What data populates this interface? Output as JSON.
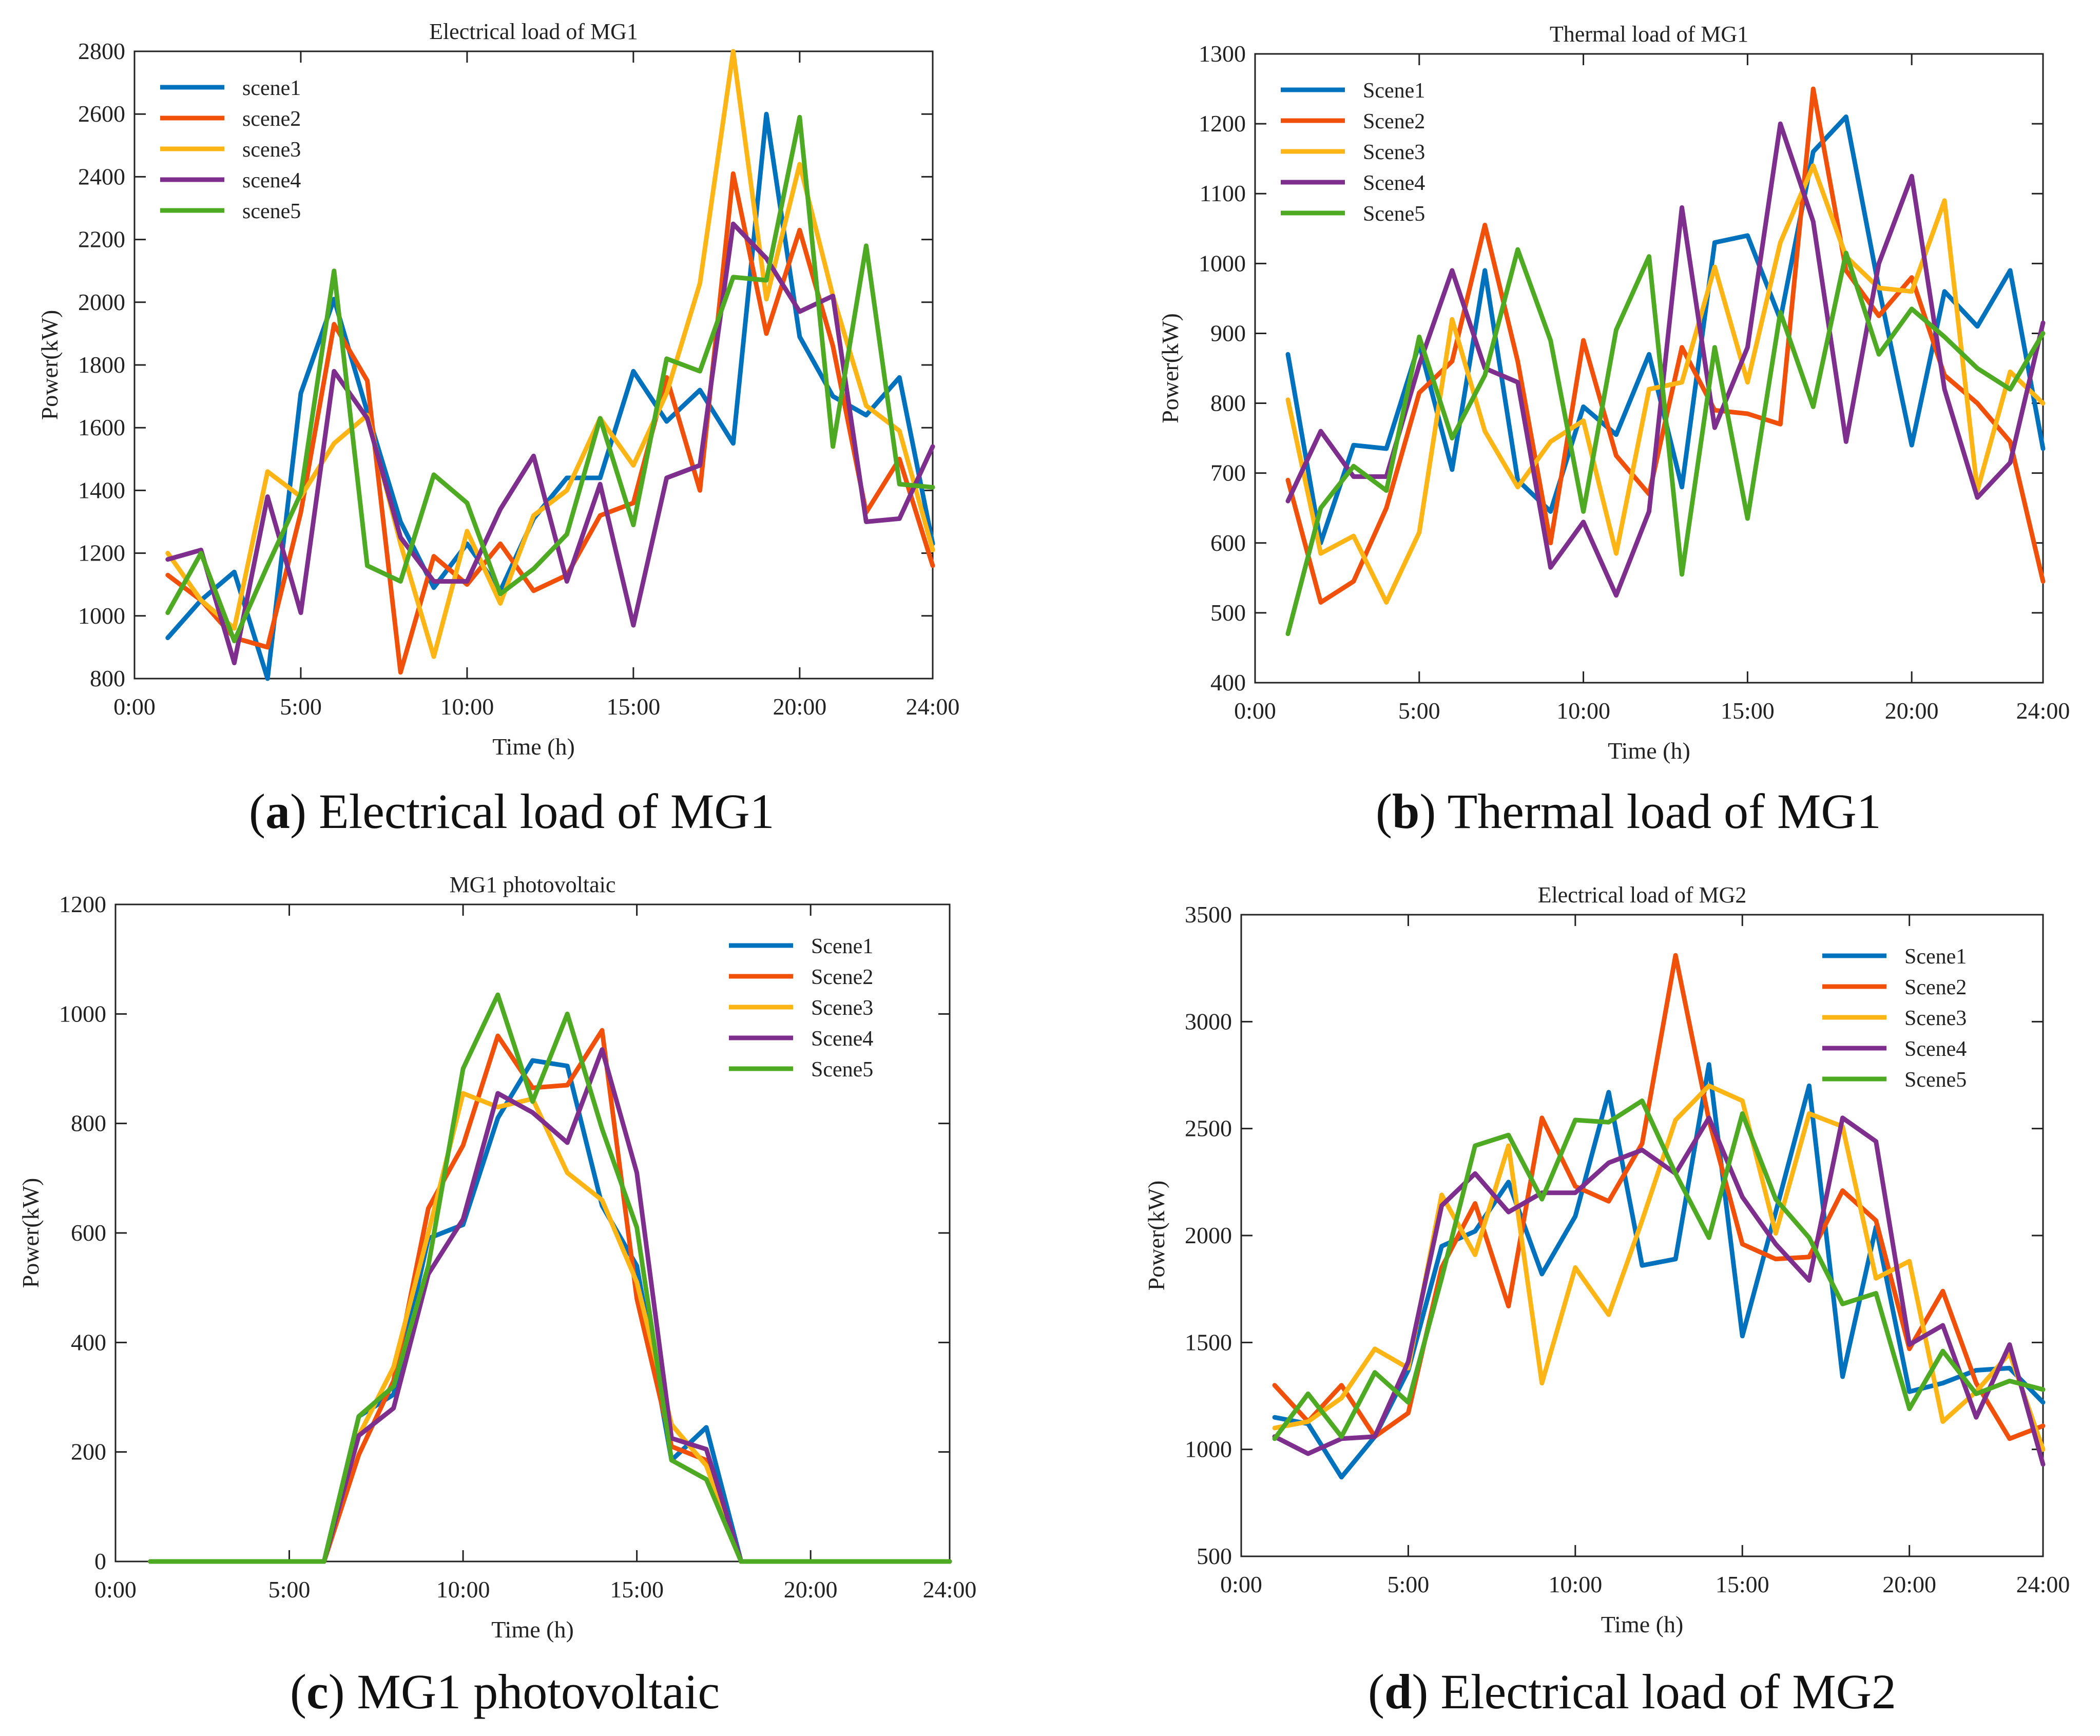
{
  "palette": [
    "#0072BD",
    "#F0500A",
    "#FDB515",
    "#7E2F8E",
    "#4DAA22"
  ],
  "captions": [
    {
      "letter": "a",
      "text": " Electrical load of MG1"
    },
    {
      "letter": "b",
      "text": " Thermal load of MG1"
    },
    {
      "letter": "c",
      "text": " MG1 photovoltaic"
    },
    {
      "letter": "d",
      "text": " Electrical load of MG2"
    }
  ],
  "chart_data": [
    {
      "type": "line",
      "title": "Electrical load of MG1",
      "xlabel": "Time (h)",
      "ylabel": "Power(kW)",
      "xlim": [
        0,
        24
      ],
      "ylim": [
        800,
        2800
      ],
      "xticks": [
        "0:00",
        "5:00",
        "10:00",
        "15:00",
        "20:00",
        "24:00"
      ],
      "yticks": [
        800,
        1000,
        1200,
        1400,
        1600,
        1800,
        2000,
        2200,
        2400,
        2600,
        2800
      ],
      "legend_position": "top-left",
      "x": [
        1,
        2,
        3,
        4,
        5,
        6,
        7,
        8,
        9,
        10,
        11,
        12,
        13,
        14,
        15,
        16,
        17,
        18,
        19,
        20,
        21,
        22,
        23,
        24
      ],
      "series": [
        {
          "name": "scene1",
          "values": [
            930,
            1050,
            1140,
            800,
            1710,
            2010,
            1650,
            1300,
            1090,
            1230,
            1080,
            1310,
            1440,
            1440,
            1780,
            1620,
            1720,
            1550,
            2600,
            1890,
            1700,
            1640,
            1760,
            1230
          ]
        },
        {
          "name": "scene2",
          "values": [
            1130,
            1050,
            930,
            900,
            1330,
            1930,
            1750,
            820,
            1190,
            1100,
            1230,
            1080,
            1130,
            1320,
            1360,
            1760,
            1400,
            2410,
            1900,
            2230,
            1860,
            1330,
            1500,
            1160
          ]
        },
        {
          "name": "scene3",
          "values": [
            1200,
            1050,
            960,
            1460,
            1380,
            1550,
            1640,
            1230,
            870,
            1270,
            1040,
            1320,
            1400,
            1630,
            1480,
            1710,
            2060,
            2800,
            2010,
            2440,
            2020,
            1670,
            1590,
            1210
          ]
        },
        {
          "name": "scene4",
          "values": [
            1180,
            1210,
            850,
            1380,
            1010,
            1780,
            1630,
            1250,
            1110,
            1110,
            1340,
            1510,
            1110,
            1420,
            970,
            1440,
            1480,
            2250,
            2140,
            1970,
            2020,
            1300,
            1310,
            1540
          ]
        },
        {
          "name": "scene5",
          "values": [
            1010,
            1200,
            920,
            1160,
            1390,
            2100,
            1160,
            1110,
            1450,
            1360,
            1070,
            1150,
            1260,
            1630,
            1290,
            1820,
            1780,
            2080,
            2070,
            2590,
            1540,
            2180,
            1420,
            1410
          ]
        }
      ]
    },
    {
      "type": "line",
      "title": "Thermal load of MG1",
      "xlabel": "Time (h)",
      "ylabel": "Power(kW)",
      "xlim": [
        0,
        24
      ],
      "ylim": [
        400,
        1300
      ],
      "xticks": [
        "0:00",
        "5:00",
        "10:00",
        "15:00",
        "20:00",
        "24:00"
      ],
      "yticks": [
        400,
        500,
        600,
        700,
        800,
        900,
        1000,
        1100,
        1200,
        1300
      ],
      "legend_position": "top-left",
      "x": [
        1,
        2,
        3,
        4,
        5,
        6,
        7,
        8,
        9,
        10,
        11,
        12,
        13,
        14,
        15,
        16,
        17,
        18,
        19,
        20,
        21,
        22,
        23,
        24
      ],
      "series": [
        {
          "name": "Scene1",
          "values": [
            870,
            600,
            740,
            735,
            885,
            705,
            990,
            690,
            645,
            795,
            755,
            870,
            680,
            1030,
            1040,
            920,
            1160,
            1210,
            965,
            740,
            960,
            910,
            990,
            735
          ]
        },
        {
          "name": "Scene2",
          "values": [
            690,
            515,
            545,
            650,
            815,
            860,
            1055,
            860,
            600,
            890,
            725,
            670,
            880,
            790,
            785,
            770,
            1250,
            990,
            925,
            980,
            840,
            800,
            745,
            545
          ]
        },
        {
          "name": "Scene3",
          "values": [
            805,
            585,
            610,
            515,
            615,
            920,
            760,
            680,
            745,
            775,
            585,
            820,
            830,
            995,
            830,
            1030,
            1140,
            1010,
            965,
            960,
            1090,
            675,
            845,
            800
          ]
        },
        {
          "name": "Scene4",
          "values": [
            660,
            760,
            695,
            695,
            855,
            990,
            850,
            830,
            565,
            630,
            525,
            645,
            1080,
            765,
            880,
            1200,
            1060,
            745,
            1000,
            1125,
            820,
            665,
            715,
            915
          ]
        },
        {
          "name": "Scene5",
          "values": [
            470,
            650,
            710,
            675,
            895,
            750,
            840,
            1020,
            890,
            645,
            905,
            1010,
            555,
            880,
            635,
            930,
            795,
            1015,
            870,
            935,
            895,
            850,
            820,
            900
          ]
        }
      ]
    },
    {
      "type": "line",
      "title": "MG1 photovoltaic",
      "xlabel": "Time (h)",
      "ylabel": "Power(kW)",
      "xlim": [
        0,
        24
      ],
      "ylim": [
        0,
        1200
      ],
      "xticks": [
        "0:00",
        "5:00",
        "10:00",
        "15:00",
        "20:00",
        "24:00"
      ],
      "yticks": [
        0,
        200,
        400,
        600,
        800,
        1000,
        1200
      ],
      "legend_position": "top-right",
      "x": [
        1,
        2,
        3,
        4,
        5,
        6,
        7,
        8,
        9,
        10,
        11,
        12,
        13,
        14,
        15,
        16,
        17,
        18,
        19,
        20,
        21,
        22,
        23,
        24
      ],
      "series": [
        {
          "name": "Scene1",
          "values": [
            0,
            0,
            0,
            0,
            0,
            0,
            265,
            305,
            590,
            615,
            810,
            915,
            905,
            650,
            540,
            185,
            245,
            0,
            0,
            0,
            0,
            0,
            0,
            0
          ]
        },
        {
          "name": "Scene2",
          "values": [
            0,
            0,
            0,
            0,
            0,
            0,
            195,
            330,
            645,
            760,
            960,
            865,
            870,
            970,
            480,
            210,
            185,
            0,
            0,
            0,
            0,
            0,
            0,
            0
          ]
        },
        {
          "name": "Scene3",
          "values": [
            0,
            0,
            0,
            0,
            0,
            0,
            230,
            355,
            600,
            855,
            830,
            845,
            710,
            660,
            510,
            250,
            175,
            0,
            0,
            0,
            0,
            0,
            0,
            0
          ]
        },
        {
          "name": "Scene4",
          "values": [
            0,
            0,
            0,
            0,
            0,
            0,
            230,
            280,
            525,
            625,
            855,
            820,
            765,
            935,
            710,
            225,
            205,
            0,
            0,
            0,
            0,
            0,
            0,
            0
          ]
        },
        {
          "name": "Scene5",
          "values": [
            0,
            0,
            0,
            0,
            0,
            0,
            265,
            320,
            540,
            900,
            1035,
            840,
            1000,
            790,
            610,
            185,
            150,
            0,
            0,
            0,
            0,
            0,
            0,
            0
          ]
        }
      ]
    },
    {
      "type": "line",
      "title": "Electrical load of MG2",
      "xlabel": "Time (h)",
      "ylabel": "Power(kW)",
      "xlim": [
        0,
        24
      ],
      "ylim": [
        500,
        3500
      ],
      "xticks": [
        "0:00",
        "5:00",
        "10:00",
        "15:00",
        "20:00",
        "24:00"
      ],
      "yticks": [
        500,
        1000,
        1500,
        2000,
        2500,
        3000,
        3500
      ],
      "legend_position": "top-right",
      "x": [
        1,
        2,
        3,
        4,
        5,
        6,
        7,
        8,
        9,
        10,
        11,
        12,
        13,
        14,
        15,
        16,
        17,
        18,
        19,
        20,
        21,
        22,
        23,
        24
      ],
      "series": [
        {
          "name": "Scene1",
          "values": [
            1150,
            1120,
            870,
            1060,
            1370,
            1950,
            2020,
            2250,
            1820,
            2090,
            2670,
            1860,
            1890,
            2800,
            1530,
            2110,
            2700,
            1340,
            2040,
            1270,
            1310,
            1370,
            1380,
            1220
          ]
        },
        {
          "name": "Scene2",
          "values": [
            1300,
            1130,
            1300,
            1060,
            1170,
            1850,
            2150,
            1670,
            2550,
            2230,
            2160,
            2430,
            3310,
            2540,
            1960,
            1890,
            1900,
            2210,
            2070,
            1470,
            1740,
            1310,
            1050,
            1110
          ]
        },
        {
          "name": "Scene3",
          "values": [
            1100,
            1130,
            1240,
            1470,
            1380,
            2190,
            1910,
            2420,
            1310,
            1850,
            1630,
            2070,
            2540,
            2700,
            2630,
            2010,
            2570,
            2510,
            1800,
            1880,
            1130,
            1270,
            1450,
            1000
          ]
        },
        {
          "name": "Scene4",
          "values": [
            1060,
            980,
            1050,
            1060,
            1410,
            2140,
            2290,
            2110,
            2200,
            2200,
            2340,
            2400,
            2290,
            2550,
            2180,
            1960,
            1790,
            2550,
            2440,
            1490,
            1580,
            1150,
            1490,
            930
          ]
        },
        {
          "name": "Scene5",
          "values": [
            1050,
            1260,
            1060,
            1360,
            1220,
            1800,
            2420,
            2470,
            2170,
            2540,
            2530,
            2630,
            2290,
            1990,
            2570,
            2170,
            1990,
            1680,
            1730,
            1190,
            1460,
            1260,
            1320,
            1280
          ]
        }
      ]
    }
  ]
}
